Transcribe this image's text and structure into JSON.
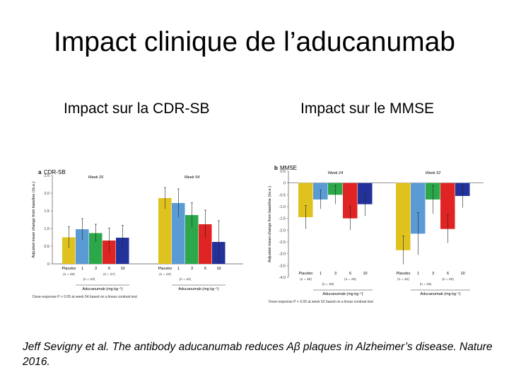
{
  "slide": {
    "title": "Impact clinique de l’aducanumab",
    "subtitle_left": "Impact sur la CDR-SB",
    "subtitle_right": "Impact sur le MMSE",
    "citation": "Jeff Sevigny et al. The antibody aducanumab reduces Aβ plaques in Alzheimer’s disease. Nature 2016."
  },
  "colors": {
    "placebo": "#e0c21e",
    "dose1": "#5b9bd5",
    "dose3": "#2ca84a",
    "dose6": "#e02424",
    "dose10": "#22329a"
  },
  "chart_data": [
    {
      "type": "bar",
      "panel": "a",
      "title": "CDR-SB",
      "ylabel": "Adjusted mean change from baseline (±s.e.)",
      "ylim": [
        0,
        2.5
      ],
      "yticks": [
        "0",
        "0.5",
        "1.0",
        "1.5",
        "2.0",
        "2.5"
      ],
      "groups": [
        {
          "label": "Week 26",
          "categories": [
            "Placebo",
            "1",
            "3",
            "6",
            "10"
          ],
          "n_labels": [
            "(n = 28)",
            "(n = 23)",
            "(n = 27)"
          ],
          "values": [
            0.75,
            0.98,
            0.87,
            0.66,
            0.74
          ],
          "errors": [
            0.3,
            0.3,
            0.25,
            0.35,
            0.35
          ]
        },
        {
          "label": "Week 54",
          "categories": [
            "Placebo",
            "1",
            "3",
            "6",
            "10"
          ],
          "n_labels": [
            "(n = 23)",
            "(n = 24)"
          ],
          "values": [
            1.86,
            1.72,
            1.38,
            1.12,
            0.62
          ],
          "errors": [
            0.3,
            0.4,
            0.35,
            0.4,
            0.6
          ]
        }
      ],
      "xlabel": "Aducanumab (mg kg⁻¹)",
      "footnote": "Dose-response P < 0.05 at week 54 based on a linear contrast test"
    },
    {
      "type": "bar",
      "panel": "b",
      "title": "MMSE",
      "ylabel": "Adjusted mean change from baseline (±s.e.)",
      "ylim": [
        -4.0,
        0.5
      ],
      "yticks": [
        "0.5",
        "0",
        "-0.5",
        "-1.0",
        "-1.5",
        "-2.0",
        "-2.5",
        "-3.0",
        "-3.5",
        "-4.0"
      ],
      "groups": [
        {
          "label": "Week 24",
          "categories": [
            "Placebo",
            "1",
            "3",
            "6",
            "10"
          ],
          "n_labels": [
            "(n = 36)",
            "(n = 29)",
            "(n = 26)"
          ],
          "values": [
            -1.45,
            -0.7,
            -0.5,
            -1.5,
            -0.9
          ],
          "errors": [
            0.5,
            0.4,
            0.4,
            0.5,
            0.5
          ]
        },
        {
          "label": "Week 52",
          "categories": [
            "Placebo",
            "1",
            "3",
            "6",
            "10"
          ],
          "n_labels": [
            "(n = 32)",
            "(n = 26)",
            "(n = 26)"
          ],
          "values": [
            -2.85,
            -2.15,
            -0.7,
            -1.95,
            -0.55
          ],
          "errors": [
            0.6,
            0.9,
            0.6,
            0.6,
            0.5
          ]
        }
      ],
      "xlabel": "Aducanumab (mg kg⁻¹)",
      "footnote": "Dose-response P < 0.05 at week 52 based on a linear contrast test"
    }
  ]
}
